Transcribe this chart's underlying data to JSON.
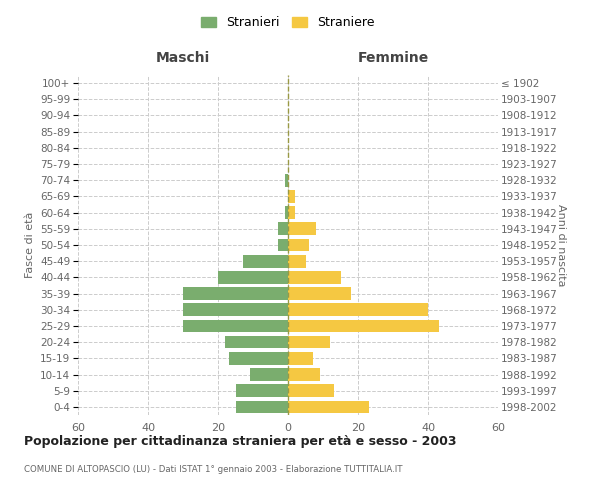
{
  "age_groups": [
    "0-4",
    "5-9",
    "10-14",
    "15-19",
    "20-24",
    "25-29",
    "30-34",
    "35-39",
    "40-44",
    "45-49",
    "50-54",
    "55-59",
    "60-64",
    "65-69",
    "70-74",
    "75-79",
    "80-84",
    "85-89",
    "90-94",
    "95-99",
    "100+"
  ],
  "birth_years": [
    "1998-2002",
    "1993-1997",
    "1988-1992",
    "1983-1987",
    "1978-1982",
    "1973-1977",
    "1968-1972",
    "1963-1967",
    "1958-1962",
    "1953-1957",
    "1948-1952",
    "1943-1947",
    "1938-1942",
    "1933-1937",
    "1928-1932",
    "1923-1927",
    "1918-1922",
    "1913-1917",
    "1908-1912",
    "1903-1907",
    "≤ 1902"
  ],
  "males": [
    15,
    15,
    11,
    17,
    18,
    30,
    30,
    30,
    20,
    13,
    3,
    3,
    1,
    0,
    1,
    0,
    0,
    0,
    0,
    0,
    0
  ],
  "females": [
    23,
    13,
    9,
    7,
    12,
    43,
    40,
    18,
    15,
    5,
    6,
    8,
    2,
    2,
    0,
    0,
    0,
    0,
    0,
    0,
    0
  ],
  "male_color": "#7AAD6E",
  "female_color": "#F5C842",
  "background_color": "#ffffff",
  "grid_color": "#cccccc",
  "title": "Popolazione per cittadinanza straniera per età e sesso - 2003",
  "subtitle": "COMUNE DI ALTOPASCIO (LU) - Dati ISTAT 1° gennaio 2003 - Elaborazione TUTTITALIA.IT",
  "header_left": "Maschi",
  "header_right": "Femmine",
  "ylabel_left": "Fasce di età",
  "ylabel_right": "Anni di nascita",
  "legend_male": "Stranieri",
  "legend_female": "Straniere",
  "xlim": 60,
  "dpi": 100,
  "figsize": [
    6.0,
    5.0
  ]
}
